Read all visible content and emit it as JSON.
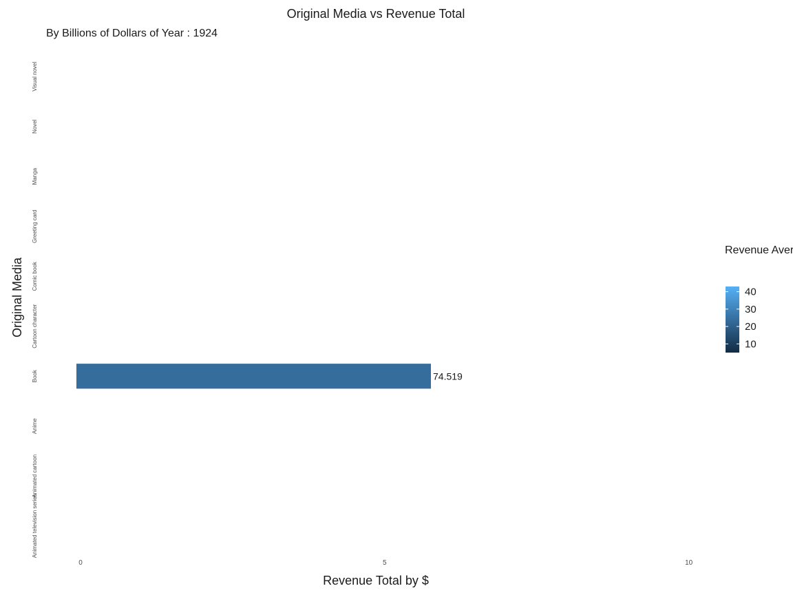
{
  "chart_data": {
    "type": "bar",
    "orientation": "horizontal",
    "title": "Original Media vs Revenue Total",
    "subtitle": "By Billions of Dollars of Year : 1924",
    "xlabel": "Revenue Total by $",
    "ylabel": "Original Media",
    "categories": [
      "Animated television series",
      "Animated cartoon",
      "Anime",
      "Book",
      "Cartoon character",
      "Comic book",
      "Greeting card",
      "Manga",
      "Novel",
      "Visual novel"
    ],
    "values": [
      null,
      null,
      null,
      74.519,
      null,
      null,
      null,
      null,
      null,
      null
    ],
    "data_labels": [
      "",
      "",
      "",
      "74.519",
      "",
      "",
      "",
      "",
      "",
      ""
    ],
    "bar_fill_values": [
      null,
      null,
      null,
      24,
      null,
      null,
      null,
      null,
      null,
      null
    ],
    "x_ticks": [
      "0",
      "5",
      "10"
    ],
    "x_tick_values": [
      0,
      5,
      10
    ],
    "xlim": [
      0,
      10.4
    ],
    "grid": false,
    "legend": {
      "title": "Revenue Average In Billions",
      "ticks": [
        "40",
        "30",
        "20",
        "10"
      ],
      "tick_values": [
        40,
        30,
        20,
        10
      ],
      "range": [
        5,
        43
      ],
      "colors": [
        "#132b43",
        "#56b1f7"
      ],
      "placement": "right"
    },
    "bar_color": "#3a78ae"
  }
}
